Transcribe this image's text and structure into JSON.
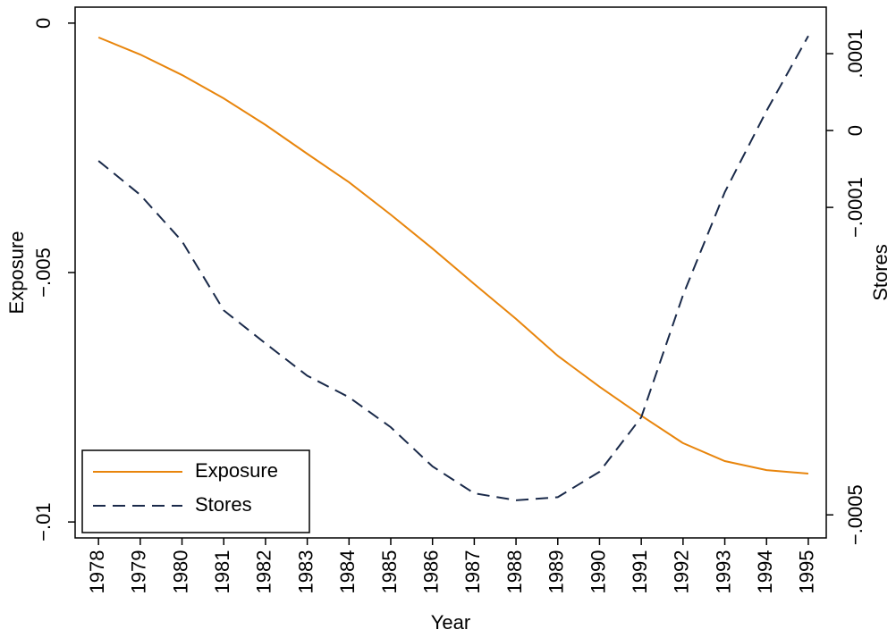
{
  "chart_data": {
    "type": "line",
    "x_label": "Year",
    "y_label": "Exposure",
    "y2_label": "Stores",
    "x": [
      1978,
      1979,
      1980,
      1981,
      1982,
      1983,
      1984,
      1985,
      1986,
      1987,
      1988,
      1989,
      1990,
      1991,
      1992,
      1993,
      1994,
      1995
    ],
    "xlim": [
      1977.44,
      1995.43
    ],
    "xticks": [
      1978,
      1979,
      1980,
      1981,
      1982,
      1983,
      1984,
      1985,
      1986,
      1987,
      1988,
      1989,
      1990,
      1991,
      1992,
      1993,
      1994,
      1995
    ],
    "ylim": [
      -0.01032,
      0.00032
    ],
    "yticks": [
      0,
      {
        "value": -0.005,
        "label": "−.005"
      },
      {
        "value": -0.01,
        "label": "−.01"
      }
    ],
    "y2lim": [
      -0.00053,
      0.0001605
    ],
    "y2ticks": [
      {
        "value": 0.0001,
        "label": ".0001"
      },
      0,
      {
        "value": -0.0001,
        "label": "−.0001"
      },
      {
        "value": -0.0005,
        "label": "−.0005"
      }
    ],
    "legend": "lower left",
    "series": [
      {
        "name": "Exposure",
        "color": "#e8850c",
        "dash": false,
        "values": [
          -0.000287,
          -0.00063,
          -0.00104,
          -0.00151,
          -0.00204,
          -0.00262,
          -0.00319,
          -0.00384,
          -0.00452,
          -0.00523,
          -0.00593,
          -0.00667,
          -0.00729,
          -0.00787,
          -0.00842,
          -0.00878,
          -0.00896,
          -0.00903
        ]
      },
      {
        "name": "Stores",
        "color": "#1a2a4a",
        "dash": true,
        "axis": "y2",
        "values": [
          -3.95e-05,
          -8.37e-05,
          -0.000144,
          -0.000234,
          -0.000277,
          -0.000319,
          -0.000347,
          -0.000386,
          -0.000437,
          -0.000472,
          -0.000481,
          -0.000477,
          -0.000444,
          -0.000373,
          -0.000214,
          -8.02e-05,
          2.56e-05,
          0.000123
        ]
      }
    ]
  }
}
